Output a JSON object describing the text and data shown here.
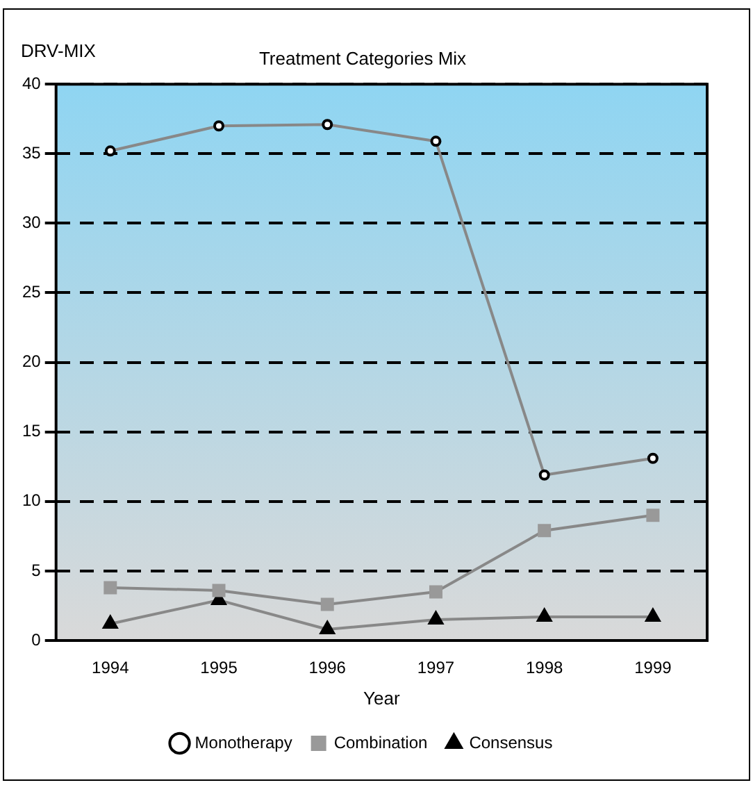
{
  "chart_data": {
    "type": "line",
    "title": "Treatment Categories Mix",
    "ylabel": "DRV-MIX",
    "xlabel": "Year",
    "categories": [
      "1994",
      "1995",
      "1996",
      "1997",
      "1998",
      "1999"
    ],
    "series": [
      {
        "name": "Monotherapy",
        "color": "#000000",
        "marker": "circle",
        "values": [
          35.2,
          37.0,
          37.1,
          35.9,
          11.9,
          13.1
        ]
      },
      {
        "name": "Combination",
        "color": "#999999",
        "marker": "square",
        "values": [
          3.8,
          3.6,
          2.6,
          3.5,
          7.9,
          9.0
        ]
      },
      {
        "name": "Consensus",
        "color": "#000000",
        "marker": "triangle",
        "values": [
          1.2,
          2.9,
          0.8,
          1.5,
          1.7,
          1.7
        ]
      }
    ],
    "ylim": [
      0,
      40
    ],
    "yticks": [
      0,
      5,
      10,
      15,
      20,
      25,
      30,
      35,
      40
    ],
    "grid": "y",
    "line_style": "solid",
    "legend": "bottom"
  }
}
